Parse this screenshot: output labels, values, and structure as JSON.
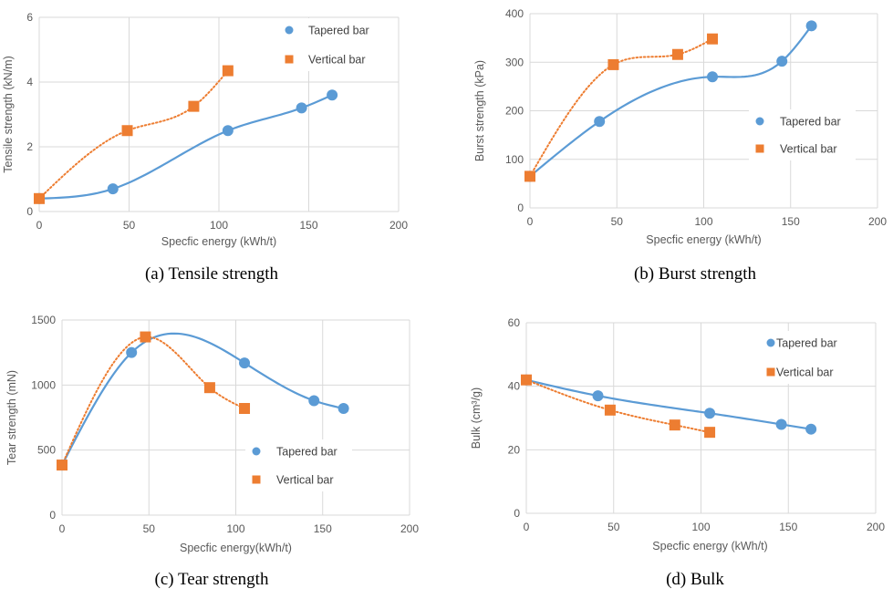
{
  "colors": {
    "tapered": "#5b9bd5",
    "vertical": "#ed7d31"
  },
  "chart_data": [
    {
      "type": "scatter",
      "caption": "(a) Tensile strength",
      "xlabel": "Specfic energy  (kWh/t)",
      "ylabel": "Tensile  strength  (kN/m)",
      "xlim": [
        0,
        200
      ],
      "ylim": [
        0,
        6
      ],
      "xticks": [
        0,
        50,
        100,
        150,
        200
      ],
      "yticks": [
        0,
        2,
        4,
        6
      ],
      "grid": true,
      "legend_position": "top-right",
      "series": [
        {
          "name": "Tapered bar",
          "marker": "circle",
          "trendline": "solid",
          "x": [
            0,
            41,
            105,
            146,
            163
          ],
          "y": [
            0.4,
            0.7,
            2.5,
            3.2,
            3.6
          ]
        },
        {
          "name": "Vertical bar",
          "marker": "square",
          "trendline": "dotted",
          "x": [
            0,
            49,
            86,
            105
          ],
          "y": [
            0.4,
            2.5,
            3.25,
            4.35
          ]
        }
      ]
    },
    {
      "type": "scatter",
      "caption": "(b) Burst strength",
      "xlabel": "Specfic energy  (kWh/t)",
      "ylabel": "Burst  strength  (kPa)",
      "xlim": [
        0,
        200
      ],
      "ylim": [
        0,
        400
      ],
      "xticks": [
        0,
        50,
        100,
        150,
        200
      ],
      "yticks": [
        0,
        100,
        200,
        300,
        400
      ],
      "grid": true,
      "legend_position": "center-right",
      "series": [
        {
          "name": "Tapered bar",
          "marker": "circle",
          "trendline": "solid",
          "x": [
            0,
            40,
            105,
            145,
            162
          ],
          "y": [
            65,
            178,
            270,
            302,
            375
          ]
        },
        {
          "name": "Vertical bar",
          "marker": "square",
          "trendline": "dotted",
          "x": [
            0,
            48,
            85,
            105
          ],
          "y": [
            65,
            295,
            316,
            348
          ]
        }
      ]
    },
    {
      "type": "scatter",
      "caption": "(c) Tear strength",
      "xlabel": "Specfic energy(kWh/t)",
      "ylabel": "Tear strength (mN)",
      "xlim": [
        0,
        200
      ],
      "ylim": [
        0,
        1500
      ],
      "xticks": [
        0,
        50,
        100,
        150,
        200
      ],
      "yticks": [
        0,
        500,
        1000,
        1500
      ],
      "grid": true,
      "legend_position": "bottom-right",
      "series": [
        {
          "name": "Tapered bar",
          "marker": "circle",
          "trendline": "solid",
          "x": [
            0,
            40,
            105,
            145,
            162
          ],
          "y": [
            385,
            1250,
            1170,
            880,
            820
          ]
        },
        {
          "name": "Vertical bar",
          "marker": "square",
          "trendline": "dotted",
          "x": [
            0,
            48,
            85,
            105
          ],
          "y": [
            385,
            1370,
            980,
            820
          ]
        }
      ]
    },
    {
      "type": "scatter",
      "caption": "(d) Bulk",
      "xlabel": "Specfic energy  (kWh/t)",
      "ylabel": "Bulk (cm³/g)",
      "xlim": [
        0,
        200
      ],
      "ylim": [
        0,
        60
      ],
      "xticks": [
        0,
        50,
        100,
        150,
        200
      ],
      "yticks": [
        0,
        20,
        40,
        60
      ],
      "grid": true,
      "legend_position": "top-right",
      "series": [
        {
          "name": "Tapered bar",
          "marker": "circle",
          "trendline": "solid",
          "x": [
            0,
            41,
            105,
            146,
            163
          ],
          "y": [
            42,
            37,
            31.5,
            28,
            26.5
          ]
        },
        {
          "name": "Vertical bar",
          "marker": "square",
          "trendline": "dotted",
          "x": [
            0,
            48,
            85,
            105
          ],
          "y": [
            42,
            32.5,
            27.8,
            25.5
          ]
        }
      ]
    }
  ]
}
